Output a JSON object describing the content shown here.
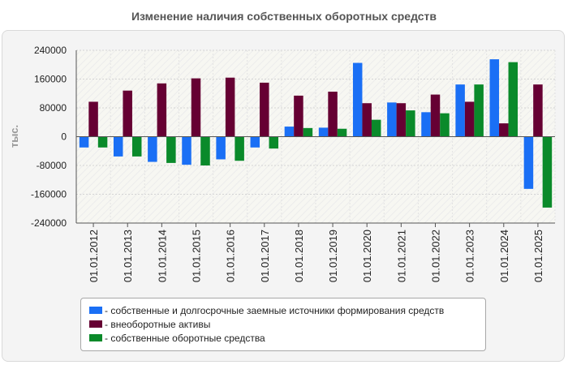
{
  "chart_data": {
    "type": "bar",
    "title": "Изменение наличия собственных оборотных средств",
    "ylabel": "тыс.",
    "xlabel": "",
    "ylim": [
      -240000,
      240000
    ],
    "yticks": [
      240000,
      160000,
      80000,
      0,
      -80000,
      -160000,
      -240000
    ],
    "categories": [
      "01.01.2012",
      "01.01.2013",
      "01.01.2014",
      "01.01.2015",
      "01.01.2016",
      "01.01.2017",
      "01.01.2018",
      "01.01.2019",
      "01.01.2020",
      "01.01.2021",
      "01.01.2022",
      "01.01.2023",
      "01.01.2024",
      "01.01.2025"
    ],
    "series": [
      {
        "name": "- собственные и долгосрочные заемные источники формирования средств",
        "color": "#1a6ff5",
        "values": [
          -30000,
          -55000,
          -70000,
          -78000,
          -63000,
          -30000,
          28000,
          25000,
          205000,
          95000,
          68000,
          145000,
          215000,
          -145000
        ]
      },
      {
        "name": "- внеоборотные активы",
        "color": "#660033",
        "values": [
          97000,
          128000,
          148000,
          162000,
          164000,
          150000,
          114000,
          125000,
          93000,
          93000,
          117000,
          97000,
          37000,
          145000
        ]
      },
      {
        "name": "- собственные оборотные средства",
        "color": "#0a8a2a",
        "values": [
          -30000,
          -55000,
          -73000,
          -80000,
          -67000,
          -33000,
          24000,
          22000,
          47000,
          73000,
          65000,
          145000,
          207000,
          -197000
        ]
      }
    ],
    "grid": true,
    "legend_position": "bottom"
  }
}
